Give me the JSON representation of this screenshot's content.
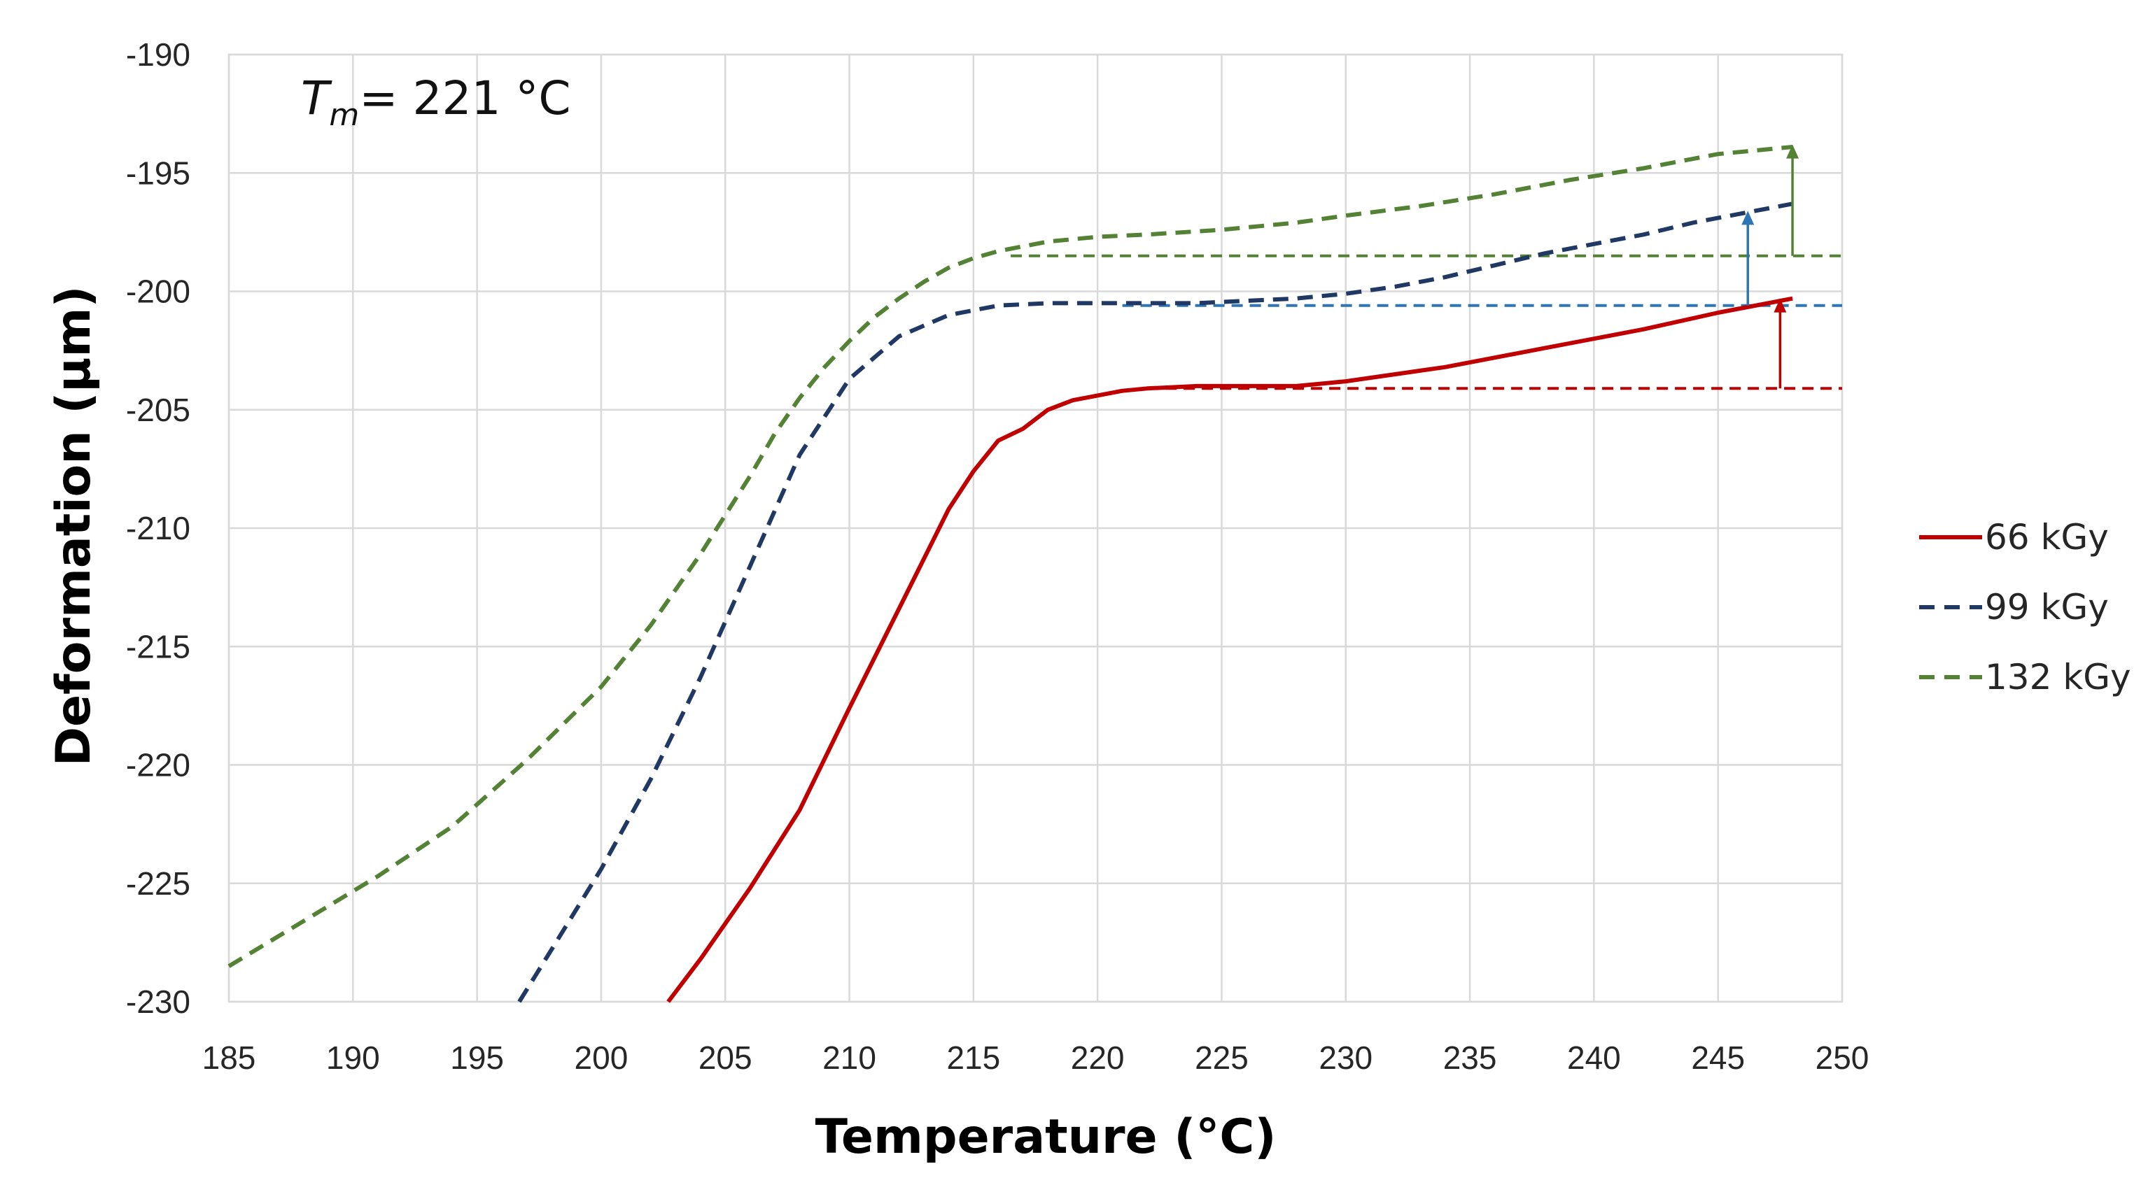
{
  "chart_data": {
    "type": "line",
    "title": "",
    "xlabel": "Temperature (°C)",
    "ylabel": "Deformation (µm)",
    "xlim": [
      185,
      250
    ],
    "ylim": [
      -230,
      -190
    ],
    "xticks": [
      185,
      190,
      195,
      200,
      205,
      210,
      215,
      220,
      225,
      230,
      235,
      240,
      245,
      250
    ],
    "yticks": [
      -190,
      -195,
      -200,
      -205,
      -210,
      -215,
      -220,
      -225,
      -230
    ],
    "grid": true,
    "legend_position": "right",
    "annotation": {
      "main": "T",
      "sub": "m",
      "rest": "= 221 °C"
    },
    "series": [
      {
        "name": "66 kGy",
        "color": "#c00000",
        "dash": "solid",
        "x": [
          202.7,
          204,
          206,
          208,
          210,
          212,
          214,
          215,
          216,
          217,
          218,
          219,
          220,
          221,
          222,
          224,
          226,
          228,
          230,
          234,
          238,
          242,
          245,
          248
        ],
        "y": [
          -230,
          -228.2,
          -225.2,
          -221.9,
          -217.6,
          -213.4,
          -209.2,
          -207.6,
          -206.3,
          -205.8,
          -205.0,
          -204.6,
          -204.4,
          -204.2,
          -204.1,
          -204.0,
          -204.0,
          -204.0,
          -203.8,
          -203.2,
          -202.4,
          -201.6,
          -200.9,
          -200.3
        ]
      },
      {
        "name": "99 kGy",
        "color": "#1f3864",
        "dash": "dashed",
        "x": [
          196.7,
          198,
          200,
          202,
          204,
          206,
          208,
          210,
          212,
          214,
          216,
          218,
          220,
          222,
          224,
          226,
          228,
          230,
          232,
          234,
          236,
          238,
          240,
          242,
          244,
          246,
          248
        ],
        "y": [
          -230,
          -227.8,
          -224.4,
          -220.6,
          -216.3,
          -211.6,
          -206.9,
          -203.7,
          -201.9,
          -201.0,
          -200.6,
          -200.5,
          -200.5,
          -200.5,
          -200.5,
          -200.4,
          -200.3,
          -200.1,
          -199.8,
          -199.4,
          -198.9,
          -198.4,
          -198.0,
          -197.6,
          -197.1,
          -196.7,
          -196.3
        ]
      },
      {
        "name": "132 kGy",
        "color": "#548235",
        "dash": "dashed",
        "x": [
          185,
          188,
          191,
          194,
          197,
          200,
          202,
          204,
          206,
          207,
          208,
          209,
          210,
          211,
          212,
          213,
          214,
          215,
          216,
          218,
          220,
          222,
          225,
          228,
          230,
          233,
          236,
          239,
          242,
          245,
          248
        ],
        "y": [
          -228.5,
          -226.6,
          -224.7,
          -222.6,
          -219.8,
          -216.7,
          -214.1,
          -211.1,
          -207.8,
          -206.0,
          -204.5,
          -203.2,
          -202.1,
          -201.1,
          -200.3,
          -199.6,
          -199.0,
          -198.6,
          -198.3,
          -197.9,
          -197.7,
          -197.6,
          -197.4,
          -197.1,
          -196.8,
          -196.4,
          -195.9,
          -195.3,
          -194.8,
          -194.2,
          -193.9
        ]
      }
    ],
    "reference_lines": [
      {
        "y": -204.1,
        "x_start": 222,
        "x_end": 250,
        "color": "#c00000"
      },
      {
        "y": -200.6,
        "x_start": 221,
        "x_end": 250,
        "color": "#2e75b6"
      },
      {
        "y": -198.5,
        "x_start": 216.5,
        "x_end": 250,
        "color": "#548235"
      }
    ],
    "arrows": [
      {
        "x": 247.5,
        "y_from": -204.1,
        "y_to": -200.3,
        "color": "#c00000"
      },
      {
        "x": 246.2,
        "y_from": -200.6,
        "y_to": -196.6,
        "color": "#2e75b6"
      },
      {
        "x": 248.0,
        "y_from": -198.5,
        "y_to": -193.8,
        "color": "#548235"
      }
    ]
  }
}
